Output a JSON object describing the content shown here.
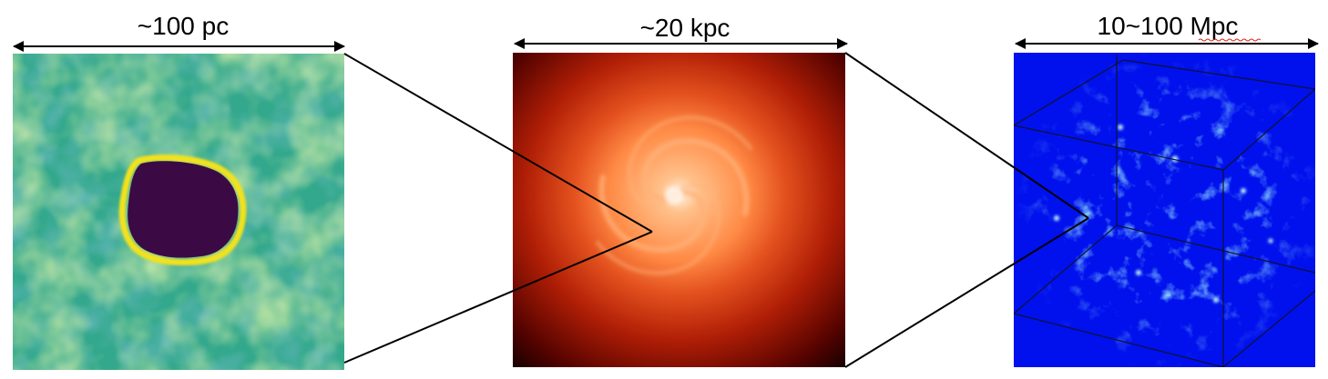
{
  "panels": [
    {
      "id": "bubble",
      "scale_label": "~100 pc",
      "palette": {
        "background": "#33a88c",
        "light_patch": "#8fcf62",
        "dark_patch": "#2a7f8e",
        "void": "#3b0a45",
        "rim": "#f2e21c"
      }
    },
    {
      "id": "galaxy",
      "scale_label": "~20 kpc",
      "palette": {
        "core": "#ffe9d6",
        "inner": "#ff9a52",
        "disk": "#e84a1a",
        "outer": "#8c0a00",
        "edge": "#140000"
      }
    },
    {
      "id": "cosmic-web",
      "scale_label": "10~100 Mpc",
      "palette": {
        "background": "#0011ee",
        "filament": "#3fa9ff",
        "node": "#bff3ff",
        "box_edge": "#101030"
      }
    }
  ],
  "colors": {
    "arrows": "#000000",
    "zoom_lines": "#000000",
    "spellcheck_underline": "#e0201a"
  }
}
